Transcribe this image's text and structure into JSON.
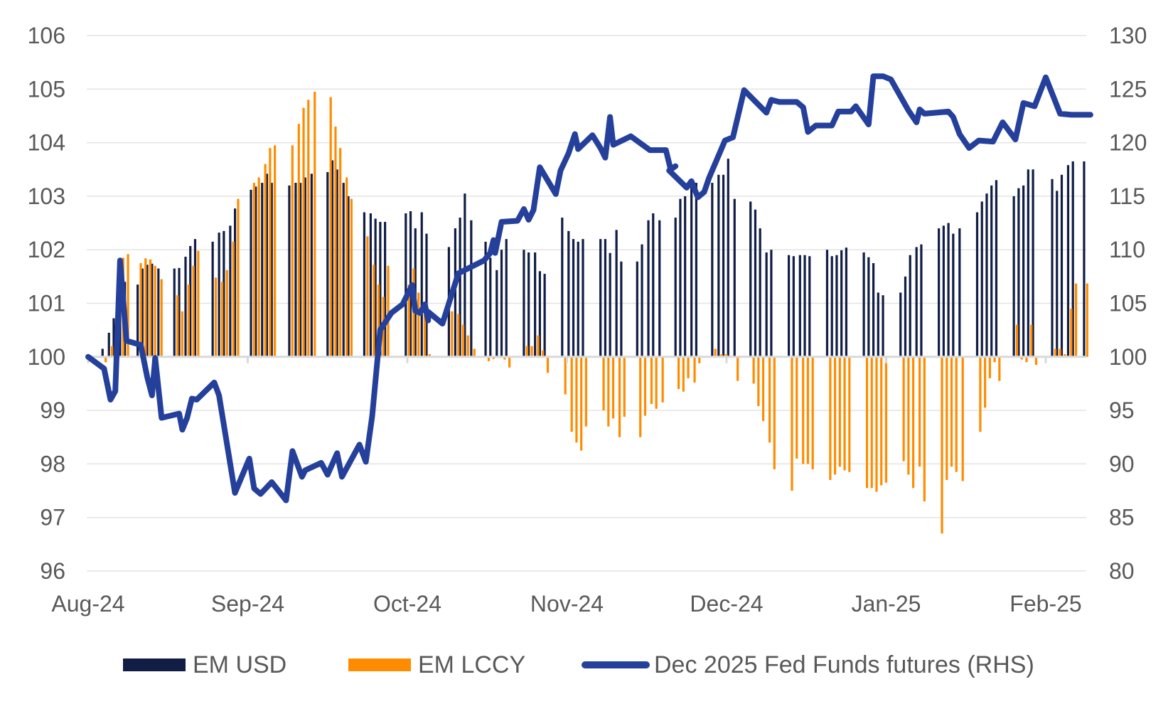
{
  "chart_data": {
    "type": "bar+line",
    "title": "",
    "x_axis": {
      "unit": "months since Aug-24",
      "range": [
        0,
        6.28
      ],
      "tick_labels": [
        "Aug-24",
        "Sep-24",
        "Oct-24",
        "Nov-24",
        "Dec-24",
        "Jan-25",
        "Feb-25"
      ],
      "tick_values": [
        0,
        1,
        2,
        3,
        4,
        5,
        6
      ]
    },
    "y_left": {
      "range": [
        96,
        106
      ],
      "ticks": [
        96,
        97,
        98,
        99,
        100,
        101,
        102,
        103,
        104,
        105,
        106
      ],
      "baseline": 100,
      "grid": true
    },
    "y_right": {
      "range": [
        80,
        130
      ],
      "ticks": [
        80,
        85,
        90,
        95,
        100,
        105,
        110,
        115,
        120,
        125,
        130
      ]
    },
    "legend": {
      "position": "bottom",
      "items": [
        {
          "name": "EM USD",
          "type": "bar",
          "color": "#111d45"
        },
        {
          "name": "EM LCCY",
          "type": "bar",
          "color": "#ff8c00"
        },
        {
          "name": "Dec 2025 Fed Funds futures (RHS)",
          "type": "line",
          "color": "#24409b"
        }
      ]
    },
    "bars": {
      "x": [
        0.1,
        0.14,
        0.17,
        0.21,
        0.24,
        0.32,
        0.35,
        0.38,
        0.41,
        0.45,
        0.55,
        0.58,
        0.62,
        0.65,
        0.68,
        0.79,
        0.83,
        0.86,
        0.9,
        0.93,
        1.03,
        1.06,
        1.1,
        1.13,
        1.16,
        1.27,
        1.31,
        1.34,
        1.37,
        1.41,
        1.51,
        1.54,
        1.57,
        1.61,
        1.64,
        1.74,
        1.78,
        1.81,
        1.84,
        1.87,
        2.0,
        2.03,
        2.06,
        2.1,
        2.13,
        2.27,
        2.31,
        2.34,
        2.37,
        2.41,
        2.5,
        2.53,
        2.57,
        2.6,
        2.63,
        2.74,
        2.77,
        2.81,
        2.84,
        2.87,
        2.98,
        3.02,
        3.05,
        3.08,
        3.11,
        3.22,
        3.25,
        3.28,
        3.32,
        3.35,
        3.45,
        3.48,
        3.52,
        3.55,
        3.59,
        3.69,
        3.72,
        3.75,
        3.79,
        3.82,
        3.92,
        3.96,
        3.99,
        4.02,
        4.06,
        4.16,
        4.19,
        4.22,
        4.26,
        4.29,
        4.4,
        4.43,
        4.47,
        4.5,
        4.53,
        4.64,
        4.67,
        4.7,
        4.73,
        4.76,
        4.87,
        4.9,
        4.93,
        4.96,
        4.99,
        5.1,
        5.13,
        5.16,
        5.2,
        5.23,
        5.34,
        5.37,
        5.4,
        5.43,
        5.47,
        5.58,
        5.61,
        5.64,
        5.67,
        5.7,
        5.81,
        5.84,
        5.87,
        5.9,
        5.93,
        6.05,
        6.08,
        6.11,
        6.15,
        6.18,
        6.25
      ],
      "series": [
        {
          "name": "EM USD",
          "values": [
            100.15,
            100.45,
            100.72,
            101.15,
            101.4,
            101.35,
            101.65,
            101.72,
            101.74,
            101.65,
            101.65,
            101.66,
            101.87,
            102.07,
            102.2,
            102.15,
            102.32,
            102.35,
            102.45,
            102.77,
            103.12,
            103.18,
            103.25,
            103.42,
            103.25,
            103.2,
            103.25,
            103.25,
            103.35,
            103.42,
            103.45,
            103.67,
            103.5,
            103.25,
            103.0,
            102.7,
            102.68,
            102.58,
            102.52,
            102.52,
            102.68,
            102.72,
            102.4,
            102.7,
            102.3,
            102.05,
            102.4,
            102.6,
            103.05,
            102.55,
            102.15,
            101.85,
            101.62,
            102.0,
            102.2,
            102.0,
            101.95,
            101.95,
            101.6,
            101.55,
            102.6,
            102.35,
            102.2,
            102.15,
            102.2,
            102.2,
            102.2,
            101.94,
            102.37,
            101.78,
            101.78,
            102.1,
            102.55,
            102.68,
            102.55,
            102.6,
            102.95,
            103.0,
            103.2,
            103.25,
            103.25,
            103.4,
            103.4,
            103.7,
            102.95,
            102.9,
            102.75,
            102.4,
            101.95,
            102.0,
            101.9,
            101.88,
            101.9,
            101.9,
            101.88,
            102.0,
            101.88,
            101.9,
            101.99,
            102.04,
            101.95,
            101.86,
            101.75,
            101.2,
            101.15,
            101.2,
            101.5,
            101.9,
            102.05,
            102.1,
            102.4,
            102.45,
            102.5,
            102.3,
            102.4,
            102.7,
            102.9,
            103.05,
            103.2,
            103.3,
            103.0,
            103.15,
            103.2,
            103.5,
            103.5,
            103.32,
            103.1,
            103.4,
            103.58,
            103.65,
            103.65
          ]
        },
        {
          "name": "EM LCCY",
          "values": [
            99.9,
            100.2,
            100.25,
            101.85,
            101.92,
            101.75,
            101.84,
            101.82,
            101.7,
            101.45,
            101.15,
            100.85,
            101.35,
            101.7,
            101.98,
            101.48,
            101.4,
            101.62,
            102.15,
            102.95,
            103.25,
            103.35,
            103.6,
            103.9,
            103.95,
            103.95,
            104.35,
            104.65,
            104.8,
            104.95,
            104.85,
            104.3,
            103.9,
            103.35,
            102.95,
            102.25,
            101.72,
            101.35,
            101.12,
            101.7,
            101.35,
            101.65,
            101.2,
            100.95,
            100.05,
            100.85,
            100.8,
            100.6,
            100.4,
            100.15,
            99.92,
            99.96,
            99.98,
            99.95,
            99.8,
            100.2,
            100.2,
            100.4,
            100.12,
            99.7,
            99.3,
            98.6,
            98.4,
            98.25,
            98.7,
            99.0,
            98.7,
            98.85,
            98.5,
            98.88,
            98.5,
            98.9,
            99.12,
            99.03,
            99.15,
            99.4,
            99.35,
            99.6,
            99.52,
            99.88,
            100.15,
            100.05,
            100.05,
            100.0,
            99.55,
            99.5,
            99.08,
            98.8,
            98.4,
            97.9,
            97.5,
            98.1,
            98.0,
            98.0,
            97.9,
            97.7,
            97.8,
            97.95,
            97.88,
            97.85,
            97.55,
            97.55,
            97.48,
            97.6,
            97.65,
            98.05,
            97.8,
            97.55,
            97.95,
            97.3,
            96.7,
            97.7,
            97.95,
            97.85,
            97.68,
            98.6,
            99.05,
            99.6,
            99.9,
            99.55,
            100.6,
            99.95,
            99.9,
            100.6,
            99.85,
            100.15,
            100.15,
            100.05,
            100.9,
            101.37,
            101.37
          ]
        }
      ]
    },
    "line": {
      "name": "Dec 2025 Fed Funds futures (RHS)",
      "axis": "right",
      "x": [
        0,
        0.1,
        0.14,
        0.17,
        0.2,
        0.24,
        0.33,
        0.37,
        0.4,
        0.42,
        0.46,
        0.57,
        0.59,
        0.62,
        0.65,
        0.68,
        0.79,
        0.82,
        0.92,
        1.01,
        1.04,
        1.08,
        1.15,
        1.24,
        1.28,
        1.34,
        1.36,
        1.46,
        1.5,
        1.56,
        1.59,
        1.7,
        1.74,
        1.78,
        1.83,
        1.9,
        1.97,
        2.03,
        2.05,
        2.08,
        2.11,
        2.13,
        2.13,
        2.22,
        2.29,
        2.32,
        2.36,
        2.48,
        2.52,
        2.54,
        2.55,
        2.59,
        2.69,
        2.73,
        2.76,
        2.79,
        2.83,
        2.93,
        2.96,
        3.01,
        3.05,
        3.07,
        3.16,
        3.21,
        3.24,
        3.27,
        3.29,
        3.4,
        3.52,
        3.62,
        3.65,
        3.68,
        3.64,
        3.75,
        3.78,
        3.82,
        3.86,
        3.89,
        3.99,
        4.04,
        4.11,
        4.25,
        4.28,
        4.33,
        4.44,
        4.48,
        4.51,
        4.56,
        4.66,
        4.7,
        4.78,
        4.81,
        4.89,
        4.92,
        4.98,
        5.03,
        5.14,
        5.19,
        5.21,
        5.24,
        5.39,
        5.42,
        5.46,
        5.52,
        5.58,
        5.67,
        5.73,
        5.81,
        5.86,
        5.93,
        6.0,
        6.09,
        6.16,
        6.22,
        6.28
      ],
      "values": [
        100,
        98.9,
        96,
        96.8,
        109,
        101.5,
        101.1,
        98.1,
        96.4,
        99.9,
        94.3,
        94.7,
        93.2,
        94.3,
        96.1,
        96,
        97.6,
        96.4,
        87.3,
        90.5,
        87.7,
        87.2,
        88.3,
        86.6,
        91.2,
        88.8,
        89.4,
        90.1,
        89,
        91,
        88.8,
        91.8,
        90.2,
        94.5,
        102.5,
        104.1,
        104.9,
        106.7,
        104.3,
        104.1,
        104.9,
        103.4,
        104.2,
        103.1,
        106.4,
        107.8,
        108.1,
        109,
        109.7,
        110.9,
        109.7,
        112.6,
        112.7,
        113.8,
        112.8,
        113.7,
        117.7,
        115.2,
        117.4,
        119,
        120.8,
        119.4,
        120.7,
        119.5,
        118.6,
        122.4,
        119.8,
        120.6,
        119.3,
        119.3,
        117.5,
        117.8,
        117.4,
        115.8,
        116.4,
        114.9,
        115.4,
        116.7,
        120.2,
        120.5,
        124.9,
        122.8,
        124,
        123.8,
        123.8,
        123.3,
        121,
        121.6,
        121.6,
        122.9,
        122.9,
        123.4,
        121.7,
        126.2,
        126.2,
        125.9,
        123,
        121.9,
        123.1,
        122.7,
        122.9,
        122.4,
        120.8,
        119.5,
        120.2,
        120.1,
        121.9,
        120.3,
        123.7,
        123.4,
        126.1,
        122.7,
        122.6,
        122.6,
        122.6
      ]
    }
  }
}
